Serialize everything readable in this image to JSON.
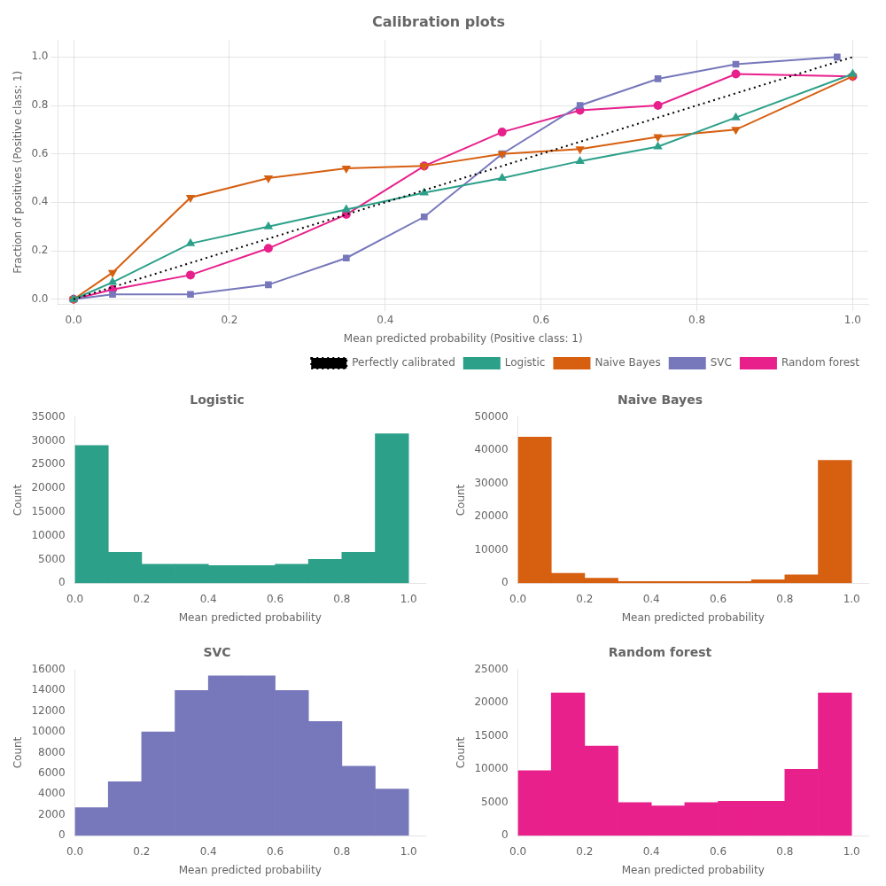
{
  "chart_data": [
    {
      "type": "line",
      "title": "Calibration plots",
      "x_label": "Mean predicted probability (Positive class: 1)",
      "y_label": "Fraction of positives (Positive class: 1)",
      "series": [
        {
          "name": "Perfectly calibrated",
          "color": "#000000",
          "line_style": "dotted",
          "marker": "none",
          "x": [
            0,
            1
          ],
          "values": [
            0,
            1
          ]
        },
        {
          "name": "Logistic",
          "color": "#2ca089",
          "line_style": "solid",
          "marker": "triangle-up",
          "x": [
            0.0,
            0.05,
            0.15,
            0.25,
            0.35,
            0.45,
            0.55,
            0.65,
            0.75,
            0.85,
            1.0
          ],
          "values": [
            0.0,
            0.07,
            0.23,
            0.3,
            0.37,
            0.44,
            0.5,
            0.57,
            0.63,
            0.75,
            0.93
          ]
        },
        {
          "name": "Naive Bayes",
          "color": "#d65f10",
          "line_style": "solid",
          "marker": "triangle-down",
          "x": [
            0.0,
            0.05,
            0.15,
            0.25,
            0.35,
            0.45,
            0.55,
            0.65,
            0.75,
            0.85,
            1.0
          ],
          "values": [
            0.0,
            0.11,
            0.42,
            0.5,
            0.54,
            0.55,
            0.6,
            0.62,
            0.67,
            0.7,
            0.92
          ]
        },
        {
          "name": "SVC",
          "color": "#7777bb",
          "line_style": "solid",
          "marker": "square",
          "x": [
            0.0,
            0.05,
            0.15,
            0.25,
            0.35,
            0.45,
            0.55,
            0.65,
            0.75,
            0.85,
            0.98
          ],
          "values": [
            0.0,
            0.02,
            0.02,
            0.06,
            0.17,
            0.34,
            0.6,
            0.8,
            0.91,
            0.97,
            1.0
          ]
        },
        {
          "name": "Random forest",
          "color": "#e8208c",
          "line_style": "solid",
          "marker": "circle",
          "x": [
            0.0,
            0.05,
            0.15,
            0.25,
            0.35,
            0.45,
            0.55,
            0.65,
            0.75,
            0.85,
            1.0
          ],
          "values": [
            0.0,
            0.04,
            0.1,
            0.21,
            0.35,
            0.55,
            0.69,
            0.78,
            0.8,
            0.93,
            0.92
          ]
        }
      ],
      "xlim": [
        -0.02,
        1.02
      ],
      "ylim": [
        -0.02,
        1.07
      ],
      "xticks": [
        {
          "value": 0.0,
          "label": "0.0"
        },
        0.2,
        0.4,
        0.6,
        0.8,
        {
          "value": 1.0,
          "label": "1.0"
        }
      ],
      "yticks": [
        {
          "value": 0.0,
          "label": "0.0"
        },
        0.2,
        0.4,
        0.6,
        0.8,
        {
          "value": 1.0,
          "label": "1.0"
        }
      ],
      "grid": true,
      "legend": "lower right"
    },
    {
      "type": "histogram",
      "title": "Logistic",
      "x_label": "Mean predicted probability",
      "y_label": "Count",
      "color": "#2ca089",
      "bins": [
        0.0,
        0.1,
        0.2,
        0.3,
        0.4,
        0.5,
        0.6,
        0.7,
        0.8,
        0.9,
        1.0
      ],
      "values": [
        29000,
        6500,
        4000,
        4000,
        3700,
        3700,
        4000,
        5000,
        6500,
        31500
      ],
      "xlim": [
        0.0,
        1.05
      ],
      "xticks": [
        {
          "value": 0.0,
          "label": "0.0"
        },
        0.2,
        0.4,
        0.6,
        0.8,
        {
          "value": 1.0,
          "label": "1.0"
        }
      ],
      "ylim": [
        0,
        35000
      ],
      "yticks": [
        0,
        5000,
        10000,
        15000,
        20000,
        25000,
        30000,
        35000
      ],
      "grid": false
    },
    {
      "type": "histogram",
      "title": "Naive Bayes",
      "x_label": "Mean predicted probability",
      "y_label": "Count",
      "color": "#d65f10",
      "bins": [
        0.0,
        0.1,
        0.2,
        0.3,
        0.4,
        0.5,
        0.6,
        0.7,
        0.8,
        0.9,
        1.0
      ],
      "values": [
        44000,
        3000,
        1500,
        500,
        500,
        500,
        500,
        1000,
        2500,
        37000
      ],
      "xlim": [
        0.0,
        1.05
      ],
      "xticks": [
        {
          "value": 0.0,
          "label": "0.0"
        },
        0.2,
        0.4,
        0.6,
        0.8,
        {
          "value": 1.0,
          "label": "1.0"
        }
      ],
      "ylim": [
        0,
        50000
      ],
      "yticks": [
        0,
        10000,
        20000,
        30000,
        40000,
        50000
      ],
      "grid": false
    },
    {
      "type": "histogram",
      "title": "SVC",
      "x_label": "Mean predicted probability",
      "y_label": "Count",
      "color": "#7777bb",
      "bins": [
        0.0,
        0.1,
        0.2,
        0.3,
        0.4,
        0.5,
        0.6,
        0.7,
        0.8,
        0.9,
        1.0
      ],
      "values": [
        2700,
        5200,
        10000,
        14000,
        15400,
        15400,
        14000,
        11000,
        6700,
        4500
      ],
      "xlim": [
        0.0,
        1.05
      ],
      "xticks": [
        {
          "value": 0.0,
          "label": "0.0"
        },
        0.2,
        0.4,
        0.6,
        0.8,
        {
          "value": 1.0,
          "label": "1.0"
        }
      ],
      "ylim": [
        0,
        16000
      ],
      "yticks": [
        0,
        2000,
        4000,
        6000,
        8000,
        10000,
        12000,
        14000,
        16000
      ],
      "grid": false
    },
    {
      "type": "histogram",
      "title": "Random forest",
      "x_label": "Mean predicted probability",
      "y_label": "Count",
      "color": "#e8208c",
      "bins": [
        0.0,
        0.1,
        0.2,
        0.3,
        0.4,
        0.5,
        0.6,
        0.7,
        0.8,
        0.9,
        1.0
      ],
      "values": [
        9800,
        21500,
        13500,
        5000,
        4500,
        5000,
        5200,
        5200,
        10000,
        21500
      ],
      "xlim": [
        0.0,
        1.05
      ],
      "xticks": [
        {
          "value": 0.0,
          "label": "0.0"
        },
        0.2,
        0.4,
        0.6,
        0.8,
        {
          "value": 1.0,
          "label": "1.0"
        }
      ],
      "ylim": [
        0,
        25000
      ],
      "yticks": [
        0,
        5000,
        10000,
        15000,
        20000,
        25000
      ],
      "grid": false
    }
  ]
}
